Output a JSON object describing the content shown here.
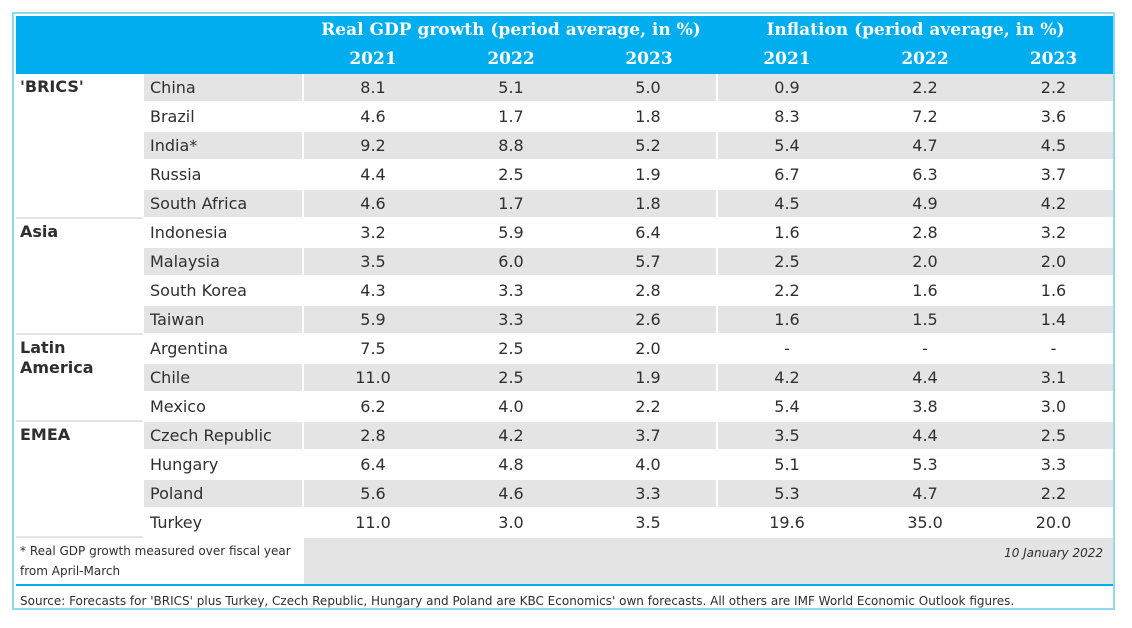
{
  "header": {
    "gdp_title": "Real GDP growth (period average, in %)",
    "inflation_title": "Inflation (period average, in %)",
    "years": [
      "2021",
      "2022",
      "2023"
    ]
  },
  "groups": [
    {
      "label": "'BRICS'",
      "rows": [
        {
          "country": "China",
          "gdp": [
            "8.1",
            "5.1",
            "5.0"
          ],
          "inf": [
            "0.9",
            "2.2",
            "2.2"
          ]
        },
        {
          "country": "Brazil",
          "gdp": [
            "4.6",
            "1.7",
            "1.8"
          ],
          "inf": [
            "8.3",
            "7.2",
            "3.6"
          ]
        },
        {
          "country": "India*",
          "gdp": [
            "9.2",
            "8.8",
            "5.2"
          ],
          "inf": [
            "5.4",
            "4.7",
            "4.5"
          ]
        },
        {
          "country": "Russia",
          "gdp": [
            "4.4",
            "2.5",
            "1.9"
          ],
          "inf": [
            "6.7",
            "6.3",
            "3.7"
          ]
        },
        {
          "country": "South Africa",
          "gdp": [
            "4.6",
            "1.7",
            "1.8"
          ],
          "inf": [
            "4.5",
            "4.9",
            "4.2"
          ]
        }
      ]
    },
    {
      "label": "Asia",
      "rows": [
        {
          "country": "Indonesia",
          "gdp": [
            "3.2",
            "5.9",
            "6.4"
          ],
          "inf": [
            "1.6",
            "2.8",
            "3.2"
          ]
        },
        {
          "country": "Malaysia",
          "gdp": [
            "3.5",
            "6.0",
            "5.7"
          ],
          "inf": [
            "2.5",
            "2.0",
            "2.0"
          ]
        },
        {
          "country": "South Korea",
          "gdp": [
            "4.3",
            "3.3",
            "2.8"
          ],
          "inf": [
            "2.2",
            "1.6",
            "1.6"
          ]
        },
        {
          "country": "Taiwan",
          "gdp": [
            "5.9",
            "3.3",
            "2.6"
          ],
          "inf": [
            "1.6",
            "1.5",
            "1.4"
          ]
        }
      ]
    },
    {
      "label": "Latin America",
      "rows": [
        {
          "country": "Argentina",
          "gdp": [
            "7.5",
            "2.5",
            "2.0"
          ],
          "inf": [
            "-",
            "-",
            "-"
          ]
        },
        {
          "country": "Chile",
          "gdp": [
            "11.0",
            "2.5",
            "1.9"
          ],
          "inf": [
            "4.2",
            "4.4",
            "3.1"
          ]
        },
        {
          "country": "Mexico",
          "gdp": [
            "6.2",
            "4.0",
            "2.2"
          ],
          "inf": [
            "5.4",
            "3.8",
            "3.0"
          ]
        }
      ]
    },
    {
      "label": "EMEA",
      "rows": [
        {
          "country": "Czech Republic",
          "gdp": [
            "2.8",
            "4.2",
            "3.7"
          ],
          "inf": [
            "3.5",
            "4.4",
            "2.5"
          ]
        },
        {
          "country": "Hungary",
          "gdp": [
            "6.4",
            "4.8",
            "4.0"
          ],
          "inf": [
            "5.1",
            "5.3",
            "3.3"
          ]
        },
        {
          "country": "Poland",
          "gdp": [
            "5.6",
            "4.6",
            "3.3"
          ],
          "inf": [
            "5.3",
            "4.7",
            "2.2"
          ]
        },
        {
          "country": "Turkey",
          "gdp": [
            "11.0",
            "3.0",
            "3.5"
          ],
          "inf": [
            "19.6",
            "35.0",
            "20.0"
          ]
        }
      ]
    }
  ],
  "footnote": "* Real GDP growth measured over fiscal year from April-March",
  "date": "10 January 2022",
  "source": "Source: Forecasts for 'BRICS' plus Turkey, Czech Republic, Hungary and Poland are KBC Economics' own forecasts. All others are IMF World Economic Outlook figures.",
  "colors": {
    "header_bg": "#00aeef",
    "row_gray": "#e4e4e4",
    "frame": "#8fd8f2"
  }
}
